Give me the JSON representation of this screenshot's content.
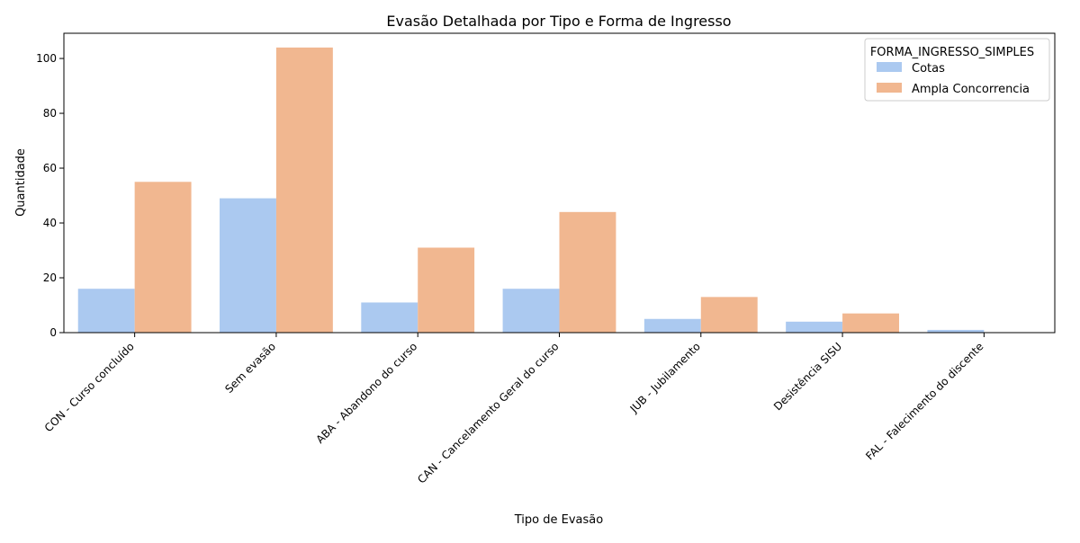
{
  "chart_data": {
    "type": "bar",
    "title": "Evasão Detalhada por Tipo e Forma de Ingresso",
    "xlabel": "Tipo de Evasão",
    "ylabel": "Quantidade",
    "categories": [
      "CON - Curso concluído",
      "Sem evasão",
      "ABA - Abandono do curso",
      "CAN - Cancelamento Geral do curso",
      "JUB - Jubilamento",
      "Desistência SISU",
      "FAL - Falecimento do discente"
    ],
    "series": [
      {
        "name": "Cotas",
        "color": "#abc9f0",
        "values": [
          16,
          49,
          11,
          16,
          5,
          4,
          1
        ]
      },
      {
        "name": "Ampla Concorrencia",
        "color": "#f1b790",
        "values": [
          55,
          104,
          31,
          44,
          13,
          7,
          0
        ]
      }
    ],
    "ylim": [
      0,
      109.2
    ],
    "yticks": [
      0,
      20,
      40,
      60,
      80,
      100
    ],
    "grid": false,
    "legend": {
      "title": "FORMA_INGRESSO_SIMPLES",
      "placement": "top-right"
    }
  }
}
